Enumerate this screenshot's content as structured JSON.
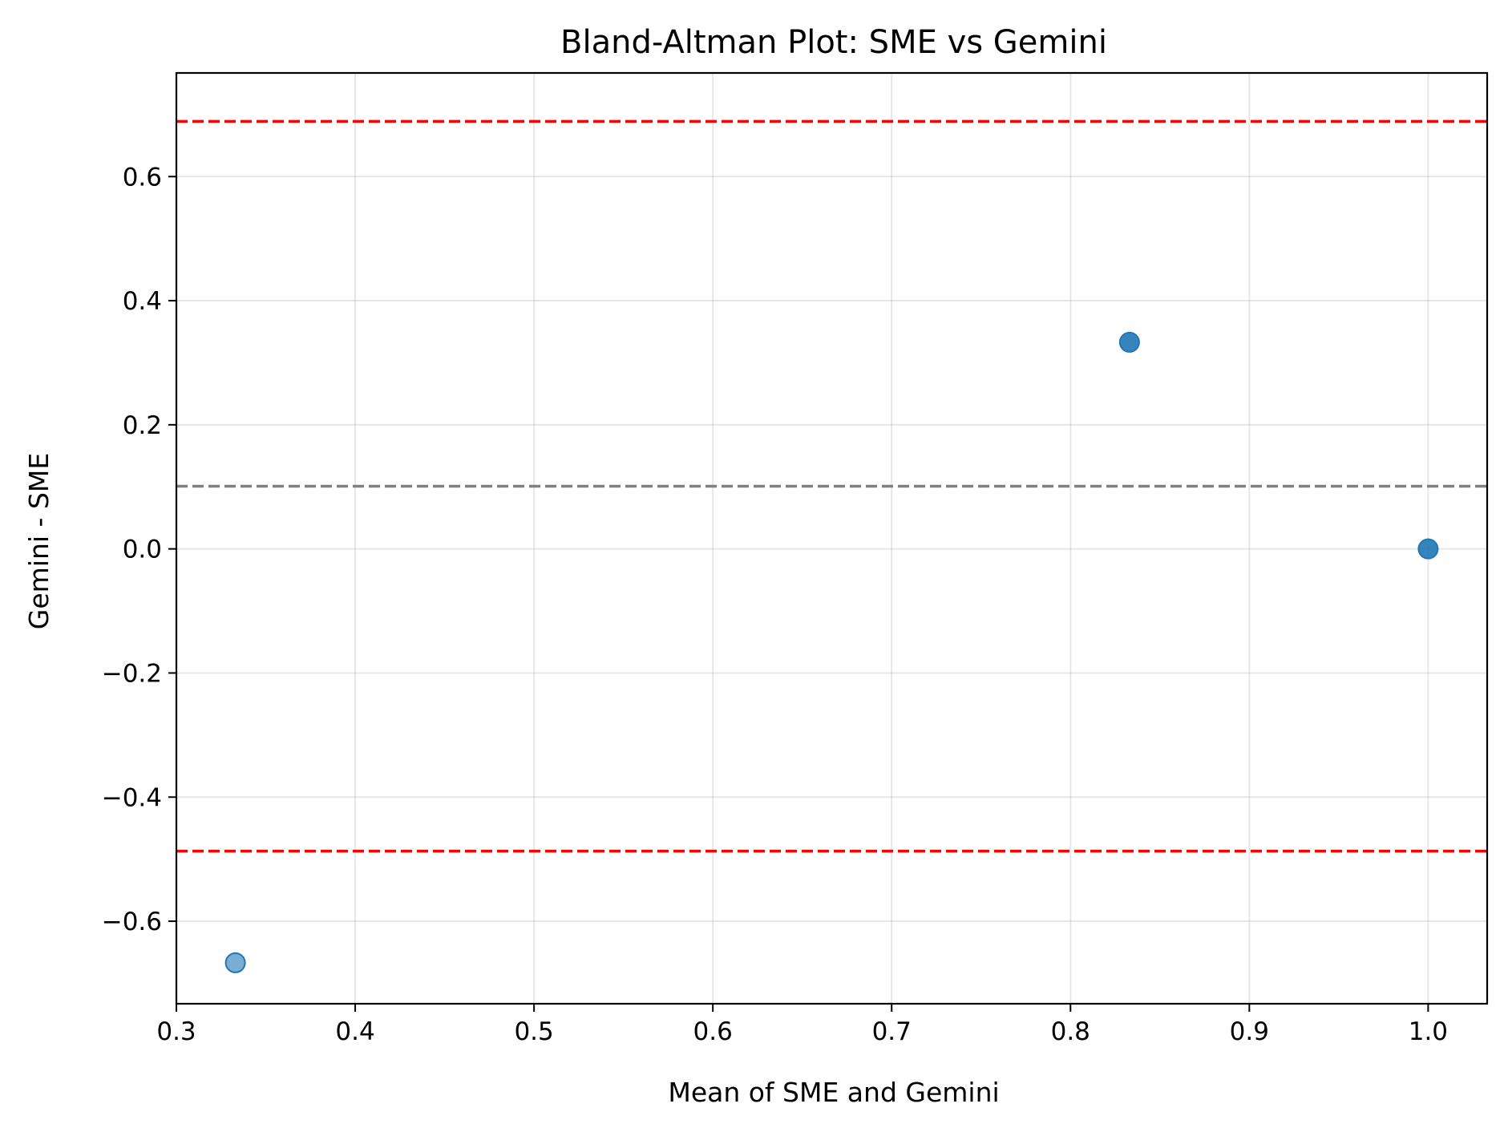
{
  "chart_data": {
    "type": "scatter",
    "title": "Bland-Altman Plot: SME vs Gemini",
    "xlabel": "Mean of SME and Gemini",
    "ylabel": "Gemini - SME",
    "xlim": [
      0.3,
      1.033
    ],
    "ylim": [
      -0.733,
      0.767
    ],
    "xticks": [
      0.3,
      0.4,
      0.5,
      0.6,
      0.7,
      0.8,
      0.9,
      1.0
    ],
    "xtick_labels": [
      "0.3",
      "0.4",
      "0.5",
      "0.6",
      "0.7",
      "0.8",
      "0.9",
      "1.0"
    ],
    "yticks": [
      0.6,
      0.4,
      0.2,
      0.0,
      -0.2,
      -0.4,
      -0.6
    ],
    "ytick_labels": [
      "0.6",
      "0.4",
      "0.2",
      "0.0",
      "−0.2",
      "−0.4",
      "−0.6"
    ],
    "grid": true,
    "points": [
      {
        "x": 0.333,
        "y": -0.667,
        "opacity": 0.6
      },
      {
        "x": 0.833,
        "y": 0.333,
        "opacity": 0.9
      },
      {
        "x": 1.0,
        "y": 0.0,
        "opacity": 0.9
      }
    ],
    "reference_lines": [
      {
        "y": 0.689,
        "color": "#ff0000",
        "style": "dashed"
      },
      {
        "y": 0.101,
        "color": "#808080",
        "style": "dashed"
      },
      {
        "y": -0.487,
        "color": "#ff0000",
        "style": "dashed"
      }
    ],
    "point_color": "#1f77b4"
  }
}
